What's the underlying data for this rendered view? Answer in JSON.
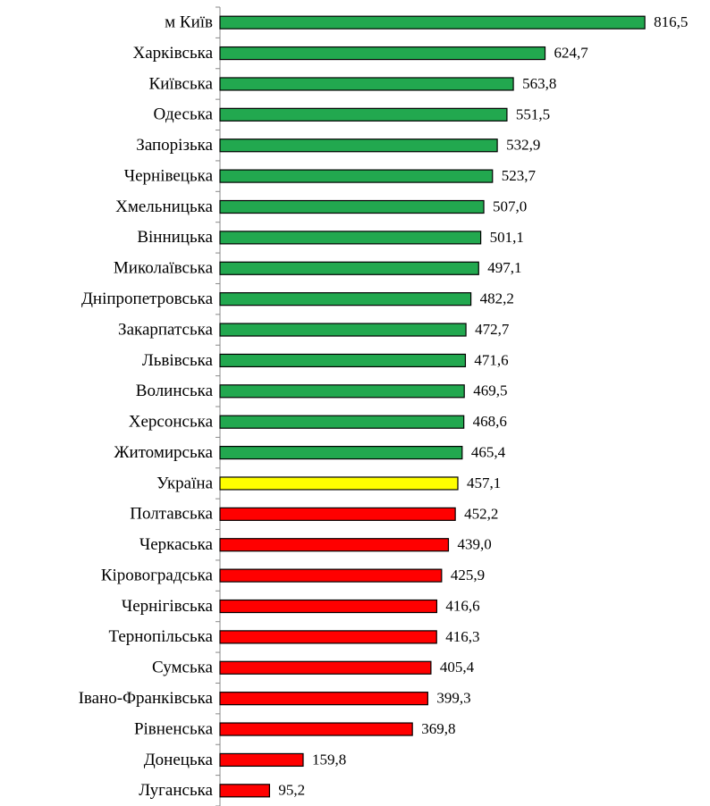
{
  "chart_data": {
    "type": "bar",
    "orientation": "horizontal",
    "categories": [
      "м Київ",
      "Харківська",
      "Київська",
      "Одеська",
      "Запорізька",
      "Чернівецька",
      "Хмельницька",
      "Вінницька",
      "Миколаївська",
      "Дніпропетровська",
      "Закарпатська",
      "Львівська",
      "Волинська",
      "Херсонська",
      "Житомирська",
      "Україна",
      "Полтавська",
      "Черкаська",
      "Кіровоградська",
      "Чернігівська",
      "Тернопільська",
      "Сумська",
      "Івано-Франківська",
      "Рівненська",
      "Донецька",
      "Луганська"
    ],
    "values": [
      816.5,
      624.7,
      563.8,
      551.5,
      532.9,
      523.7,
      507.0,
      501.1,
      497.1,
      482.2,
      472.7,
      471.6,
      469.5,
      468.6,
      465.4,
      457.1,
      452.2,
      439.0,
      425.9,
      416.6,
      416.3,
      405.4,
      399.3,
      369.8,
      159.8,
      95.2
    ],
    "value_labels": [
      "816,5",
      "624,7",
      "563,8",
      "551,5",
      "532,9",
      "523,7",
      "507,0",
      "501,1",
      "497,1",
      "482,2",
      "472,7",
      "471,6",
      "469,5",
      "468,6",
      "465,4",
      "457,1",
      "452,2",
      "439,0",
      "425,9",
      "416,6",
      "416,3",
      "405,4",
      "399,3",
      "369,8",
      "159,8",
      "95,2"
    ],
    "colors": [
      "#22a84f",
      "#22a84f",
      "#22a84f",
      "#22a84f",
      "#22a84f",
      "#22a84f",
      "#22a84f",
      "#22a84f",
      "#22a84f",
      "#22a84f",
      "#22a84f",
      "#22a84f",
      "#22a84f",
      "#22a84f",
      "#22a84f",
      "#ffff00",
      "#ff0000",
      "#ff0000",
      "#ff0000",
      "#ff0000",
      "#ff0000",
      "#ff0000",
      "#ff0000",
      "#ff0000",
      "#ff0000",
      "#ff0000"
    ],
    "xlim": [
      0,
      940
    ]
  }
}
